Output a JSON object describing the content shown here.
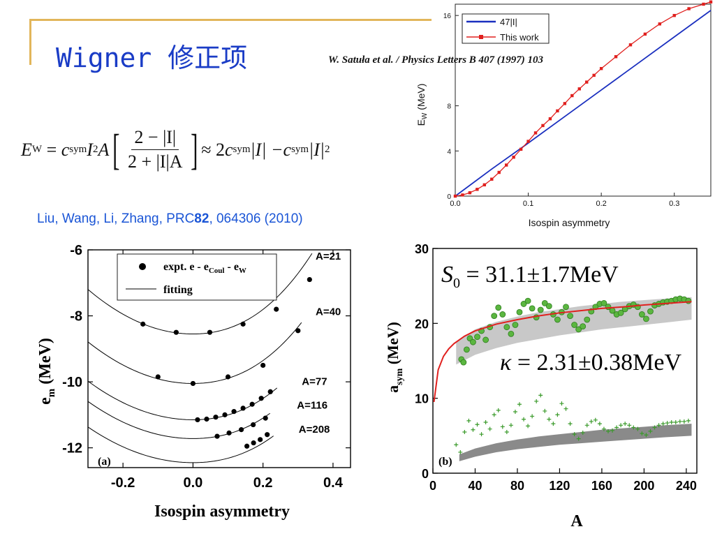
{
  "slide": {
    "title": "Wigner 修正项",
    "equation": {
      "lhs": "E",
      "lhs_sub": "W",
      "coef": "c",
      "coef_sub": "sym",
      "term": "I",
      "term_sup": "2",
      "factor": "A",
      "frac_num": "2 − |I|",
      "frac_den": "2 + |I|A",
      "approx": "≈ 2",
      "rhs_mid": "|I| − ",
      "rhs_end": "|I|",
      "rhs_sup": "2"
    },
    "citation_left": {
      "prefix": "Liu, Wang, Li, Zhang, PRC",
      "volume": "82",
      "suffix": ", 064306 (2010)"
    },
    "citation_top": "W. Satuła et al. / Physics Letters B 407 (1997) 103"
  },
  "colors": {
    "accent": "#E2B65A",
    "title": "#1A3CC6",
    "citation": "#1A55D6",
    "blue_line": "#1A2FBF",
    "red": "#E0201E",
    "green": "#3A9A2A"
  },
  "chart_data": [
    {
      "id": "ew",
      "type": "line",
      "xlabel": "Isospin asymmetry",
      "ylabel": "E",
      "ylabel_sub": "W",
      "ylabel_unit": "(MeV)",
      "xlim": [
        0,
        0.35
      ],
      "ylim": [
        0,
        17
      ],
      "xticks": [
        0.0,
        0.1,
        0.2,
        0.3
      ],
      "xtick_labels": [
        "0.0",
        "0.1",
        "0.2",
        "0.3"
      ],
      "yticks": [
        0,
        4,
        8,
        16
      ],
      "ytick_labels": [
        "0",
        "4",
        "8",
        "16"
      ],
      "legend_position": "top-right",
      "series": [
        {
          "name": "47|I|",
          "color": "#1A2FBF",
          "style": "line",
          "x": [
            0,
            0.05,
            0.1,
            0.15,
            0.2,
            0.25,
            0.3,
            0.35
          ],
          "y": [
            0,
            2.4,
            4.7,
            7.05,
            9.4,
            11.75,
            14.1,
            16.45
          ]
        },
        {
          "name": "This work",
          "color": "#E0201E",
          "style": "line-marker",
          "x": [
            0,
            0.01,
            0.02,
            0.03,
            0.04,
            0.05,
            0.06,
            0.07,
            0.08,
            0.09,
            0.1,
            0.11,
            0.12,
            0.13,
            0.14,
            0.15,
            0.16,
            0.17,
            0.18,
            0.19,
            0.2,
            0.22,
            0.24,
            0.26,
            0.28,
            0.3,
            0.32,
            0.34,
            0.35
          ],
          "y": [
            0,
            0.1,
            0.3,
            0.6,
            1.0,
            1.5,
            2.1,
            2.75,
            3.45,
            4.15,
            4.85,
            5.6,
            6.25,
            6.85,
            7.55,
            8.2,
            8.9,
            9.5,
            10.1,
            10.7,
            11.3,
            12.35,
            13.4,
            14.35,
            15.25,
            16.0,
            16.6,
            17.0,
            17.2
          ]
        }
      ]
    },
    {
      "id": "em",
      "type": "scatter",
      "panel_label": "(a)",
      "xlabel": "Isospin asymmetry",
      "ylabel": "e",
      "ylabel_sub": "m",
      "ylabel_unit": "(MeV)",
      "xlim": [
        -0.3,
        0.45
      ],
      "ylim": [
        -12.6,
        -6
      ],
      "xticks": [
        -0.2,
        0.0,
        0.2,
        0.4
      ],
      "xtick_labels": [
        "-0.2",
        "0.0",
        "0.2",
        "0.4"
      ],
      "yticks": [
        -6,
        -8,
        -10,
        -12
      ],
      "ytick_labels": [
        "-6",
        "-8",
        "-10",
        "-12"
      ],
      "legend_position": "top",
      "legend": {
        "points_label": "expt.  e - e",
        "points_sub1": "Coul",
        "points_mid": " - e",
        "points_sub2": "W",
        "line_label": "fitting"
      },
      "series": [
        {
          "name": "A=21",
          "curve": {
            "min_x": 0.0,
            "min_y": -8.55,
            "k": 15.0
          },
          "points_x": [
            -0.143,
            -0.048,
            0.048,
            0.143,
            0.238,
            0.333
          ],
          "points_y": [
            -8.25,
            -8.5,
            -8.5,
            -8.25,
            -7.8,
            -6.9
          ]
        },
        {
          "name": "A=40",
          "curve": {
            "min_x": 0.0,
            "min_y": -10.05,
            "k": 14.0
          },
          "points_x": [
            -0.1,
            0.0,
            0.1,
            0.2,
            0.3
          ],
          "points_y": [
            -9.85,
            -10.05,
            -9.85,
            -9.5,
            -8.45
          ]
        },
        {
          "name": "A=77",
          "curve": {
            "min_x": 0.0,
            "min_y": -11.15,
            "k": 13.0
          },
          "points_x": [
            0.013,
            0.039,
            0.065,
            0.091,
            0.117,
            0.143,
            0.169,
            0.195,
            0.221
          ],
          "points_y": [
            -11.15,
            -11.13,
            -11.07,
            -11.0,
            -10.9,
            -10.8,
            -10.68,
            -10.5,
            -10.3
          ]
        },
        {
          "name": "A=116",
          "curve": {
            "min_x": 0.0,
            "min_y": -11.72,
            "k": 12.5
          },
          "points_x": [
            0.069,
            0.103,
            0.138,
            0.172,
            0.207
          ],
          "points_y": [
            -11.65,
            -11.55,
            -11.45,
            -11.3,
            -11.1
          ]
        },
        {
          "name": "A=208",
          "curve": {
            "min_x": 0.0,
            "min_y": -12.45,
            "k": 12.0
          },
          "points_x": [
            0.154,
            0.173,
            0.192,
            0.212
          ],
          "points_y": [
            -11.95,
            -11.85,
            -11.75,
            -11.6
          ]
        }
      ]
    },
    {
      "id": "asym",
      "type": "scatter",
      "panel_label": "(b)",
      "xlabel": "A",
      "ylabel": "a",
      "ylabel_sub": "sym",
      "ylabel_unit": "(MeV)",
      "xlim": [
        0,
        250
      ],
      "ylim": [
        0,
        30
      ],
      "xticks": [
        0,
        40,
        80,
        120,
        160,
        200,
        240
      ],
      "xtick_labels": [
        "0",
        "40",
        "80",
        "120",
        "160",
        "200",
        "240"
      ],
      "yticks": [
        0,
        10,
        20,
        30
      ],
      "ytick_labels": [
        "0",
        "10",
        "20",
        "30"
      ],
      "annotations": {
        "s0": {
          "symbol": "S",
          "sub": "0",
          "text": " = 31.1±1.7MeV"
        },
        "kappa": {
          "symbol": "κ",
          "text": " = 2.31±0.38MeV"
        }
      },
      "fit_curve": {
        "color": "#E0201E",
        "x": [
          1,
          5,
          10,
          15,
          20,
          30,
          40,
          60,
          80,
          100,
          120,
          140,
          160,
          180,
          200,
          220,
          245
        ],
        "y": [
          9.5,
          13.8,
          15.6,
          16.6,
          17.3,
          18.3,
          19.0,
          19.9,
          20.5,
          21.0,
          21.4,
          21.7,
          22.0,
          22.2,
          22.45,
          22.65,
          22.9
        ]
      },
      "band_upper": {
        "x": [
          22,
          40,
          60,
          80,
          100,
          120,
          140,
          160,
          180,
          200,
          220,
          245
        ],
        "y": [
          17.6,
          19.2,
          20.2,
          20.9,
          21.5,
          21.9,
          22.3,
          22.6,
          22.9,
          23.1,
          23.3,
          23.5
        ]
      },
      "band_lower": {
        "x": [
          22,
          40,
          60,
          80,
          100,
          120,
          140,
          160,
          180,
          200,
          220,
          245
        ],
        "y": [
          14.5,
          15.8,
          16.7,
          17.4,
          17.9,
          18.4,
          18.8,
          19.2,
          19.5,
          19.8,
          20.1,
          20.5
        ]
      },
      "green_points": {
        "x": [
          27,
          29,
          32,
          35,
          38,
          42,
          46,
          50,
          54,
          58,
          62,
          66,
          70,
          74,
          78,
          82,
          86,
          90,
          94,
          98,
          102,
          106,
          110,
          114,
          118,
          122,
          126,
          130,
          134,
          138,
          142,
          146,
          150,
          154,
          158,
          162,
          166,
          170,
          174,
          178,
          182,
          186,
          190,
          194,
          198,
          202,
          206,
          210,
          214,
          218,
          222,
          226,
          230,
          234,
          238,
          242
        ],
        "y": [
          15.2,
          14.8,
          16.5,
          18.0,
          17.5,
          18.2,
          19.0,
          17.8,
          19.5,
          21.0,
          22.1,
          21.2,
          19.5,
          18.6,
          19.8,
          21.5,
          22.6,
          23.0,
          22.0,
          20.8,
          21.8,
          22.7,
          22.3,
          21.2,
          20.5,
          21.5,
          22.2,
          21.0,
          19.8,
          19.2,
          19.6,
          20.5,
          21.6,
          22.2,
          22.6,
          22.7,
          22.2,
          21.7,
          21.2,
          21.4,
          21.9,
          22.3,
          22.5,
          22.2,
          21.2,
          20.6,
          21.6,
          22.4,
          22.6,
          22.8,
          22.9,
          23.0,
          23.2,
          23.3,
          23.2,
          23.0
        ]
      },
      "grey_band_upper": {
        "x": [
          25,
          40,
          60,
          80,
          100,
          120,
          140,
          160,
          180,
          200,
          220,
          245
        ],
        "y": [
          2.5,
          3.3,
          4.0,
          4.5,
          4.9,
          5.2,
          5.5,
          5.8,
          6.0,
          6.2,
          6.4,
          6.6
        ]
      },
      "grey_band_lower": {
        "x": [
          25,
          40,
          60,
          80,
          100,
          120,
          140,
          160,
          180,
          200,
          220,
          245
        ],
        "y": [
          1.6,
          2.2,
          2.8,
          3.2,
          3.5,
          3.8,
          4.0,
          4.2,
          4.4,
          4.6,
          4.8,
          5.0
        ]
      },
      "plus_points": {
        "x": [
          22,
          26,
          30,
          34,
          38,
          42,
          46,
          50,
          54,
          58,
          62,
          66,
          70,
          74,
          78,
          82,
          86,
          90,
          94,
          98,
          102,
          106,
          110,
          114,
          118,
          122,
          126,
          130,
          134,
          138,
          142,
          146,
          150,
          154,
          158,
          162,
          166,
          170,
          174,
          178,
          182,
          186,
          190,
          194,
          198,
          202,
          206,
          210,
          214,
          218,
          222,
          226,
          230,
          234,
          238,
          242
        ],
        "y": [
          3.8,
          2.8,
          5.5,
          7.0,
          5.8,
          6.5,
          5.2,
          6.8,
          5.9,
          7.8,
          8.4,
          6.2,
          5.5,
          6.4,
          8.2,
          9.2,
          7.2,
          6.3,
          7.6,
          9.6,
          10.4,
          8.3,
          7.2,
          6.6,
          7.8,
          9.3,
          8.6,
          6.6,
          5.2,
          4.6,
          5.4,
          6.4,
          6.9,
          7.1,
          6.6,
          5.9,
          5.6,
          5.7,
          6.1,
          6.4,
          6.6,
          6.4,
          6.1,
          5.9,
          5.3,
          5.1,
          5.6,
          6.1,
          6.4,
          6.6,
          6.7,
          6.8,
          6.8,
          6.9,
          6.9,
          7.0
        ]
      }
    }
  ]
}
